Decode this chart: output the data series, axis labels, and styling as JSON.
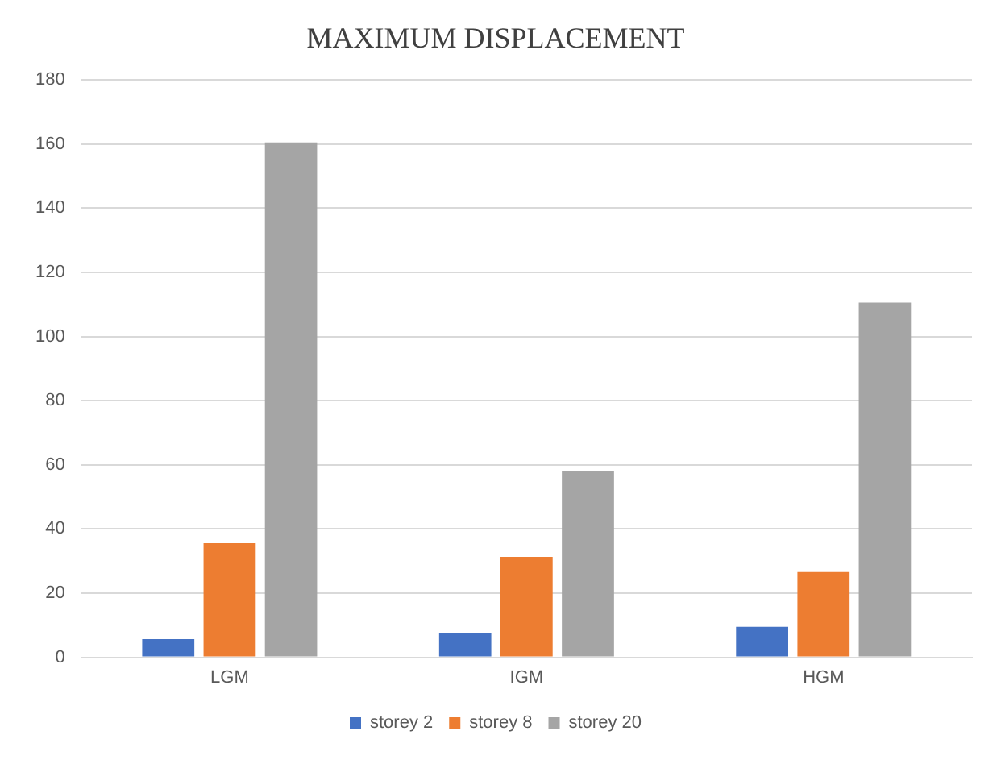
{
  "chart_data": {
    "type": "bar",
    "title": "MAXIMUM DISPLACEMENT",
    "categories": [
      "LGM",
      "IGM",
      "HGM"
    ],
    "series": [
      {
        "name": "storey 2",
        "color": "#4472c4",
        "values": [
          5.7,
          7.6,
          9.5
        ]
      },
      {
        "name": "storey 8",
        "color": "#ed7d31",
        "values": [
          35.6,
          31.3,
          26.6
        ]
      },
      {
        "name": "storey 20",
        "color": "#a5a5a5",
        "values": [
          160.5,
          58,
          110.6
        ]
      }
    ],
    "ylim": [
      0,
      180
    ],
    "yticks": [
      0,
      20,
      40,
      60,
      80,
      100,
      120,
      140,
      160,
      180
    ],
    "grid": "y",
    "legend": "bottom"
  }
}
